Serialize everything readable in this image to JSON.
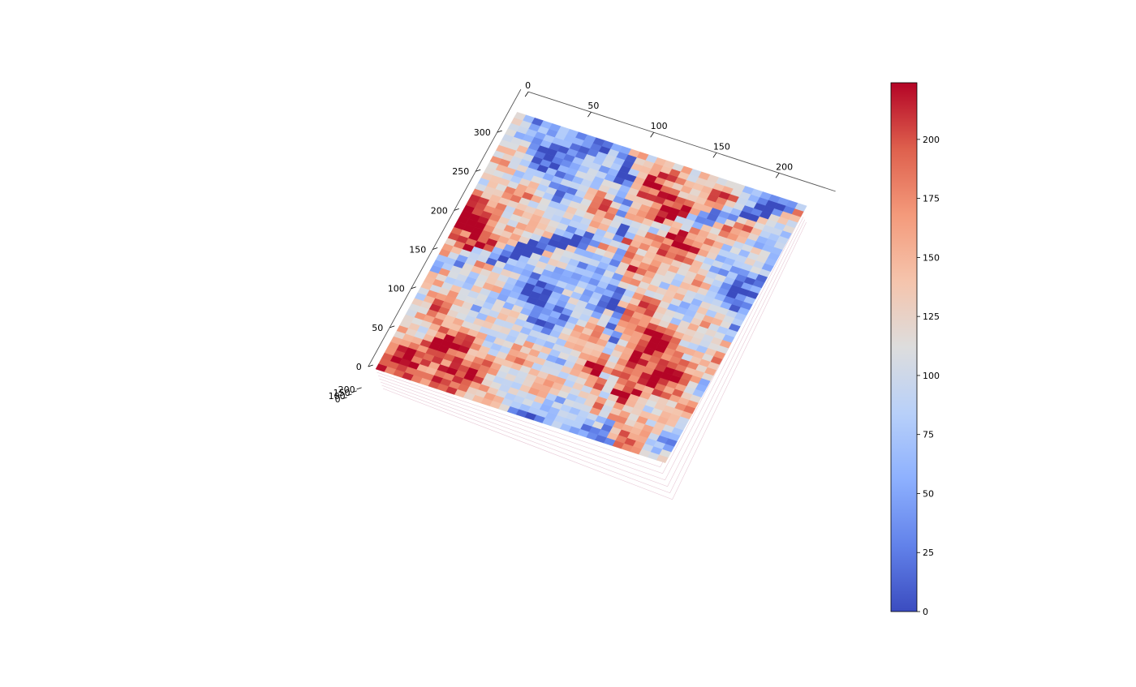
{
  "chart_data": {
    "type": "surface3d",
    "title": "",
    "xlabel": "",
    "ylabel": "",
    "zlabel": "",
    "colormap": "coolwarm",
    "colormap_stops": [
      "#3b4cc0",
      "#6282ea",
      "#8db0fe",
      "#b8d0f9",
      "#dddddd",
      "#f5c4ac",
      "#f49a7b",
      "#de604d",
      "#b40426"
    ],
    "x_axis": {
      "ticks": [
        0,
        50,
        100,
        150,
        200
      ],
      "range": [
        0,
        225
      ]
    },
    "y_axis": {
      "ticks": [
        0,
        50,
        100,
        150,
        200,
        250,
        300
      ],
      "range": [
        0,
        325
      ]
    },
    "z_axis": {
      "ticks": [
        0,
        100,
        150,
        200
      ],
      "labels": [
        "0",
        "100",
        "150",
        "200"
      ]
    },
    "colorbar": {
      "ticks": [
        0,
        25,
        50,
        75,
        100,
        125,
        150,
        175,
        200
      ],
      "labels": [
        "0",
        "25",
        "50",
        "75",
        "100",
        "125",
        "150",
        "175",
        "200"
      ],
      "range": [
        0,
        224
      ]
    },
    "grid": true
  }
}
